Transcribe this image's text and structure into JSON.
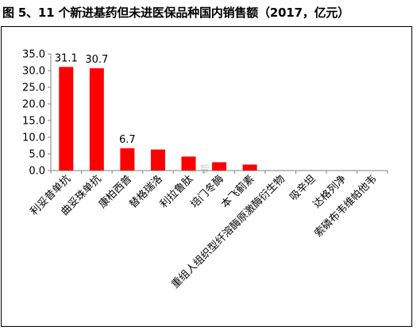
{
  "title": "图 5、11 个新进基药但未进医保品种国内销售额（2017，亿元）",
  "watermark": "张 智 熊",
  "colors": {
    "bar": "#ff0000",
    "axis": "#808080",
    "text": "#000000"
  },
  "chart_data": {
    "type": "bar",
    "categories": [
      "利妥昔单抗",
      "曲妥珠单抗",
      "康柏西普",
      "替格瑞洛",
      "利拉鲁肽",
      "培门冬酶",
      "本飞蓟素",
      "重组人组织型纤溶酶原激酶衍生物",
      "吸辛坦",
      "达格列净",
      "索磷布韦维帕他韦"
    ],
    "values": [
      31.1,
      30.7,
      6.7,
      6.3,
      4.2,
      2.5,
      1.8,
      0,
      0,
      0,
      0
    ],
    "data_labels": [
      "31.1",
      "30.7",
      "6.7",
      "",
      "",
      "",
      "",
      "",
      "",
      "",
      ""
    ],
    "ylim": [
      0,
      35
    ],
    "yticks": [
      "0.0",
      "5.0",
      "10.0",
      "15.0",
      "20.0",
      "25.0",
      "30.0",
      "35.0"
    ],
    "xlabel": "",
    "ylabel": "",
    "grid": false,
    "legend": "none"
  }
}
